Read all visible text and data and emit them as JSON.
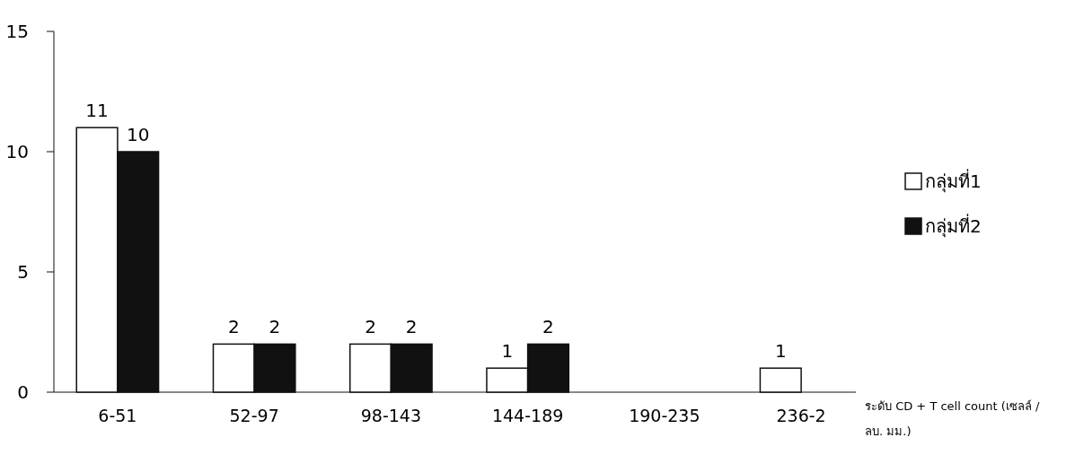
{
  "chart_data": {
    "type": "bar",
    "categories": [
      "6-51",
      "52-97",
      "98-143",
      "144-189",
      "190-235",
      "236-2"
    ],
    "series": [
      {
        "name": "กลุ่มที่1",
        "color": "#ffffff",
        "values": [
          11,
          2,
          2,
          1,
          0,
          1
        ],
        "value_labels": [
          "11",
          "2",
          "2",
          "1",
          null,
          "1"
        ]
      },
      {
        "name": "กลุ่มที่2",
        "color": "#111111",
        "values": [
          10,
          2,
          2,
          2,
          0,
          0
        ],
        "value_labels": [
          "10",
          "2",
          "2",
          "2",
          null,
          null
        ]
      }
    ],
    "xlabel": "ระดับ CD + T cell count (เซลล์ / ลบ. มม.)",
    "ylim": [
      0,
      15
    ],
    "yticks": [
      0,
      5,
      10,
      15
    ],
    "legend": "right",
    "grid": false
  }
}
